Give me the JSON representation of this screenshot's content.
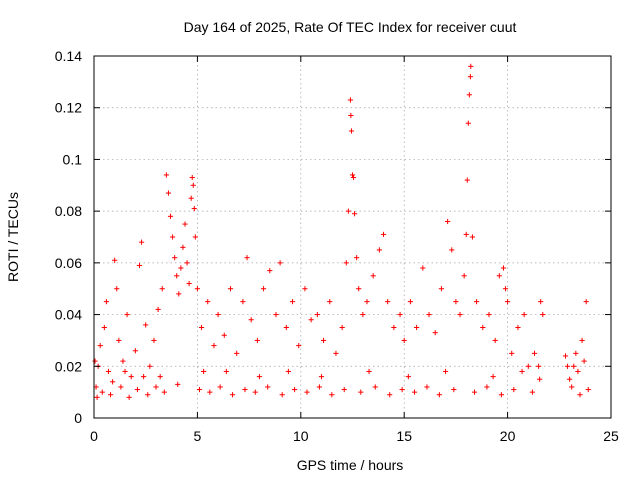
{
  "chart_data": {
    "type": "scatter",
    "title": "Day 164 of 2025, Rate Of TEC Index for receiver cuut",
    "xlabel": "GPS time / hours",
    "ylabel": "ROTI / TECUs",
    "xlim": [
      0,
      25
    ],
    "ylim": [
      0,
      0.14
    ],
    "xticks": [
      0,
      5,
      10,
      15,
      20,
      25
    ],
    "yticks": [
      0,
      0.02,
      0.04,
      0.06,
      0.08,
      0.1,
      0.12,
      0.14
    ],
    "xtick_labels": [
      "0",
      "5",
      "10",
      "15",
      "20",
      "25"
    ],
    "ytick_labels": [
      "0",
      "0.02",
      "0.04",
      "0.06",
      "0.08",
      "0.1",
      "0.12",
      "0.14"
    ],
    "grid": true,
    "marker": "+",
    "color": "#ff0000",
    "series": [
      {
        "name": "ROTI",
        "points": [
          [
            0.1,
            0.012
          ],
          [
            0.2,
            0.02
          ],
          [
            0.3,
            0.028
          ],
          [
            0.5,
            0.035
          ],
          [
            0.6,
            0.045
          ],
          [
            0.7,
            0.018
          ],
          [
            0.9,
            0.014
          ],
          [
            1.0,
            0.061
          ],
          [
            1.1,
            0.05
          ],
          [
            1.2,
            0.03
          ],
          [
            1.4,
            0.022
          ],
          [
            1.6,
            0.04
          ],
          [
            1.8,
            0.016
          ],
          [
            2.0,
            0.026
          ],
          [
            2.2,
            0.059
          ],
          [
            2.3,
            0.068
          ],
          [
            2.5,
            0.036
          ],
          [
            2.7,
            0.02
          ],
          [
            2.9,
            0.03
          ],
          [
            3.1,
            0.042
          ],
          [
            3.3,
            0.05
          ],
          [
            3.5,
            0.094
          ],
          [
            3.6,
            0.087
          ],
          [
            3.7,
            0.078
          ],
          [
            3.8,
            0.07
          ],
          [
            3.9,
            0.062
          ],
          [
            4.0,
            0.055
          ],
          [
            4.1,
            0.048
          ],
          [
            4.2,
            0.058
          ],
          [
            4.3,
            0.066
          ],
          [
            4.4,
            0.075
          ],
          [
            4.5,
            0.06
          ],
          [
            4.6,
            0.052
          ],
          [
            4.7,
            0.085
          ],
          [
            4.75,
            0.093
          ],
          [
            4.8,
            0.09
          ],
          [
            4.85,
            0.081
          ],
          [
            4.9,
            0.07
          ],
          [
            5.0,
            0.05
          ],
          [
            5.2,
            0.035
          ],
          [
            5.5,
            0.045
          ],
          [
            5.8,
            0.028
          ],
          [
            6.0,
            0.04
          ],
          [
            6.3,
            0.032
          ],
          [
            6.6,
            0.05
          ],
          [
            6.9,
            0.025
          ],
          [
            7.2,
            0.045
          ],
          [
            7.4,
            0.062
          ],
          [
            7.6,
            0.038
          ],
          [
            7.9,
            0.03
          ],
          [
            8.2,
            0.05
          ],
          [
            8.5,
            0.057
          ],
          [
            8.8,
            0.04
          ],
          [
            9.0,
            0.06
          ],
          [
            9.3,
            0.035
          ],
          [
            9.6,
            0.045
          ],
          [
            9.9,
            0.028
          ],
          [
            10.2,
            0.05
          ],
          [
            10.5,
            0.038
          ],
          [
            10.8,
            0.04
          ],
          [
            11.1,
            0.03
          ],
          [
            11.4,
            0.045
          ],
          [
            11.7,
            0.025
          ],
          [
            12.0,
            0.035
          ],
          [
            12.2,
            0.06
          ],
          [
            12.3,
            0.08
          ],
          [
            12.4,
            0.123
          ],
          [
            12.42,
            0.117
          ],
          [
            12.45,
            0.111
          ],
          [
            12.5,
            0.094
          ],
          [
            12.55,
            0.093
          ],
          [
            12.6,
            0.079
          ],
          [
            12.7,
            0.062
          ],
          [
            12.8,
            0.05
          ],
          [
            13.0,
            0.04
          ],
          [
            13.2,
            0.045
          ],
          [
            13.5,
            0.055
          ],
          [
            13.8,
            0.065
          ],
          [
            14.0,
            0.071
          ],
          [
            14.2,
            0.045
          ],
          [
            14.5,
            0.035
          ],
          [
            14.8,
            0.04
          ],
          [
            15.0,
            0.03
          ],
          [
            15.3,
            0.045
          ],
          [
            15.6,
            0.035
          ],
          [
            15.9,
            0.058
          ],
          [
            16.2,
            0.04
          ],
          [
            16.5,
            0.033
          ],
          [
            16.8,
            0.05
          ],
          [
            17.1,
            0.076
          ],
          [
            17.3,
            0.065
          ],
          [
            17.5,
            0.045
          ],
          [
            17.7,
            0.04
          ],
          [
            17.9,
            0.055
          ],
          [
            18.0,
            0.071
          ],
          [
            18.05,
            0.092
          ],
          [
            18.1,
            0.114
          ],
          [
            18.15,
            0.125
          ],
          [
            18.2,
            0.132
          ],
          [
            18.22,
            0.136
          ],
          [
            18.3,
            0.07
          ],
          [
            18.5,
            0.045
          ],
          [
            18.8,
            0.035
          ],
          [
            19.1,
            0.04
          ],
          [
            19.4,
            0.03
          ],
          [
            19.6,
            0.055
          ],
          [
            19.8,
            0.058
          ],
          [
            19.9,
            0.05
          ],
          [
            20.0,
            0.045
          ],
          [
            20.2,
            0.025
          ],
          [
            20.5,
            0.035
          ],
          [
            20.8,
            0.04
          ],
          [
            21.0,
            0.02
          ],
          [
            21.3,
            0.025
          ],
          [
            21.6,
            0.045
          ],
          [
            21.7,
            0.04
          ],
          [
            23.0,
            0.015
          ],
          [
            23.3,
            0.025
          ],
          [
            23.6,
            0.03
          ],
          [
            23.8,
            0.045
          ],
          [
            0.15,
            0.008
          ],
          [
            0.4,
            0.01
          ],
          [
            0.8,
            0.009
          ],
          [
            1.3,
            0.012
          ],
          [
            1.7,
            0.008
          ],
          [
            2.1,
            0.011
          ],
          [
            2.6,
            0.009
          ],
          [
            3.0,
            0.012
          ],
          [
            3.4,
            0.01
          ],
          [
            4.05,
            0.013
          ],
          [
            5.1,
            0.011
          ],
          [
            5.6,
            0.01
          ],
          [
            6.1,
            0.012
          ],
          [
            6.7,
            0.009
          ],
          [
            7.3,
            0.011
          ],
          [
            7.8,
            0.01
          ],
          [
            8.4,
            0.012
          ],
          [
            9.1,
            0.009
          ],
          [
            9.7,
            0.011
          ],
          [
            10.3,
            0.01
          ],
          [
            10.9,
            0.012
          ],
          [
            11.5,
            0.009
          ],
          [
            12.1,
            0.011
          ],
          [
            12.9,
            0.01
          ],
          [
            13.6,
            0.012
          ],
          [
            14.3,
            0.009
          ],
          [
            14.9,
            0.011
          ],
          [
            15.5,
            0.01
          ],
          [
            16.1,
            0.012
          ],
          [
            16.7,
            0.009
          ],
          [
            17.4,
            0.011
          ],
          [
            18.4,
            0.01
          ],
          [
            19.0,
            0.012
          ],
          [
            19.7,
            0.009
          ],
          [
            20.3,
            0.011
          ],
          [
            21.2,
            0.01
          ],
          [
            23.1,
            0.012
          ],
          [
            23.5,
            0.009
          ],
          [
            23.9,
            0.011
          ],
          [
            22.9,
            0.02
          ],
          [
            21.5,
            0.02
          ],
          [
            21.55,
            0.015
          ],
          [
            22.8,
            0.024
          ],
          [
            23.2,
            0.02
          ],
          [
            23.4,
            0.018
          ],
          [
            23.7,
            0.022
          ],
          [
            0.05,
            0.022
          ],
          [
            2.4,
            0.016
          ],
          [
            6.4,
            0.018
          ],
          [
            11.0,
            0.016
          ],
          [
            13.3,
            0.018
          ],
          [
            15.2,
            0.016
          ],
          [
            17.0,
            0.018
          ],
          [
            19.3,
            0.016
          ],
          [
            20.7,
            0.018
          ],
          [
            9.4,
            0.018
          ],
          [
            8.0,
            0.016
          ],
          [
            5.3,
            0.018
          ],
          [
            3.2,
            0.016
          ],
          [
            1.5,
            0.018
          ]
        ]
      }
    ]
  }
}
